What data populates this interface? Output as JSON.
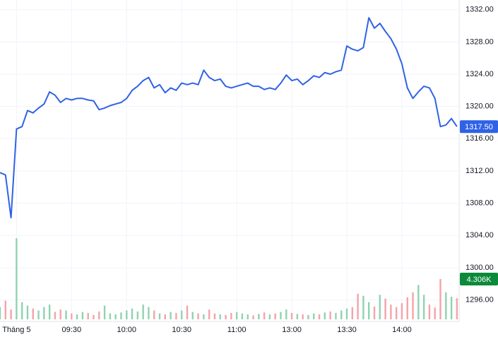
{
  "chart_data": {
    "type": "line",
    "color": "#2f62e6",
    "grid": true,
    "values": [
      1311.8,
      1311.5,
      1306.2,
      1317.2,
      1317.5,
      1319.5,
      1319.2,
      1319.8,
      1320.3,
      1321.8,
      1321.4,
      1320.5,
      1321,
      1320.8,
      1321,
      1321,
      1320.8,
      1320.7,
      1319.6,
      1319.8,
      1320.1,
      1320.3,
      1320.5,
      1321,
      1322,
      1322.5,
      1323.2,
      1323.6,
      1322.3,
      1322.7,
      1321.7,
      1322.3,
      1322,
      1322.9,
      1322.7,
      1322.9,
      1322.7,
      1324.5,
      1323.6,
      1323.2,
      1323.4,
      1322.5,
      1322.3,
      1322.5,
      1322.7,
      1322.9,
      1322.5,
      1322.5,
      1322.1,
      1322.3,
      1322.1,
      1322.9,
      1323.9,
      1323.2,
      1323.4,
      1322.7,
      1323.2,
      1323.8,
      1323.6,
      1324.2,
      1324,
      1324.3,
      1324.5,
      1327.5,
      1327.1,
      1326.9,
      1327.3,
      1331,
      1329.7,
      1330.3,
      1329.3,
      1328.4,
      1327.1,
      1325.3,
      1322.3,
      1321,
      1321.8,
      1322.5,
      1322.3,
      1321,
      1317.5,
      1317.7,
      1318.5,
      1317.5
    ],
    "last_label": {
      "value": 1317.5,
      "label": "1317.50"
    },
    "xlim": [
      0,
      83.4
    ],
    "xticks": [
      {
        "value": 3,
        "label": "Tháng 5"
      },
      {
        "value": 13,
        "label": "09:30"
      },
      {
        "value": 23,
        "label": "10:00"
      },
      {
        "value": 33,
        "label": "10:30"
      },
      {
        "value": 43,
        "label": "11:00"
      },
      {
        "value": 53,
        "label": "13:00"
      },
      {
        "value": 63,
        "label": "13:30"
      },
      {
        "value": 73,
        "label": "14:00"
      }
    ],
    "ylim": [
      1293.6,
      1333.2
    ],
    "yticks": [
      {
        "value": 1332,
        "label": "1332.00"
      },
      {
        "value": 1328,
        "label": "1328.00"
      },
      {
        "value": 1324,
        "label": "1324.00"
      },
      {
        "value": 1320,
        "label": "1320.00"
      },
      {
        "value": 1316,
        "label": "1316.00"
      },
      {
        "value": 1312,
        "label": "1312.00"
      },
      {
        "value": 1308,
        "label": "1308.00"
      },
      {
        "value": 1304,
        "label": "1304.00"
      },
      {
        "value": 1300,
        "label": "1300.00"
      },
      {
        "value": 1296,
        "label": "1296.00"
      }
    ],
    "volume": {
      "up_color": "#8fd3b0",
      "down_color": "#f4a3a8",
      "label_color": "#0b8a3a",
      "ylim": [
        0,
        65
      ],
      "values": [
        2.5,
        3.8,
        2.0,
        16.5,
        3.5,
        2.8,
        2.2,
        1.8,
        2.5,
        3.0,
        1.5,
        2.0,
        1.8,
        1.2,
        1.0,
        1.5,
        1.3,
        0.9,
        1.6,
        2.8,
        1.2,
        1.0,
        1.4,
        1.8,
        2.2,
        1.6,
        3.0,
        2.5,
        1.8,
        1.2,
        1.0,
        1.5,
        1.3,
        1.8,
        2.8,
        1.5,
        1.2,
        1.0,
        2.0,
        1.2,
        1.0,
        0.9,
        1.3,
        1.5,
        1.2,
        1.0,
        0.8,
        1.1,
        1.4,
        1.0,
        1.2,
        1.5,
        2.0,
        1.3,
        1.1,
        1.0,
        0.9,
        1.2,
        1.0,
        1.4,
        1.6,
        1.3,
        1.8,
        2.2,
        2.5,
        5.2,
        4.8,
        3.5,
        2.6,
        5.0,
        4.2,
        3.0,
        2.5,
        3.3,
        4.5,
        5.5,
        7.0,
        5.0,
        3.0,
        2.4,
        8.2,
        5.5,
        4.6,
        4.306
      ],
      "last_label": {
        "value": 4.306,
        "label": "4.306K"
      }
    }
  }
}
